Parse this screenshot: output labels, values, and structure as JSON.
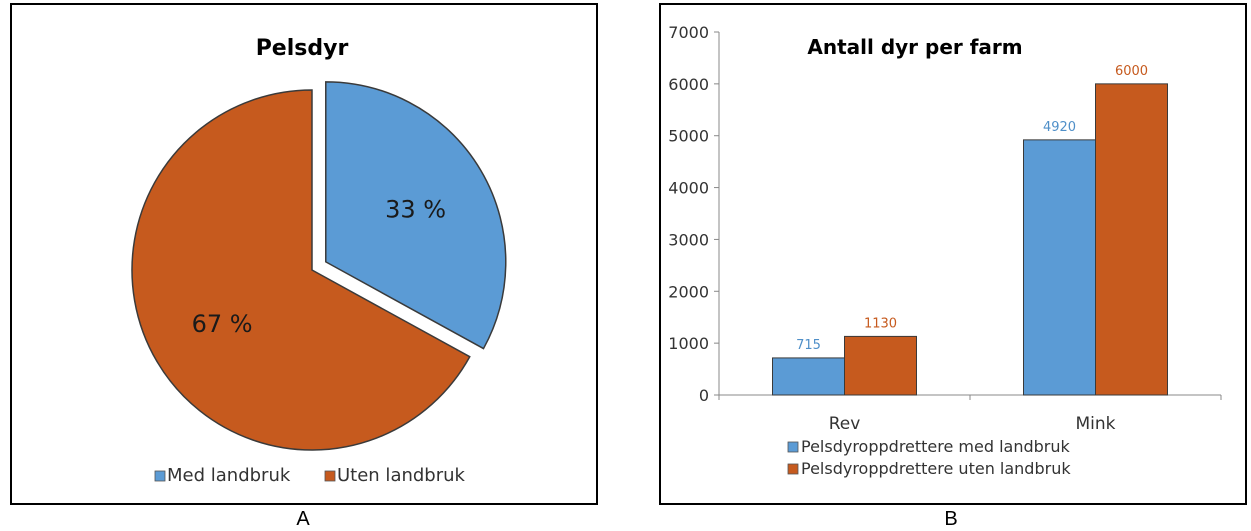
{
  "panels": [
    {
      "letter": "A"
    },
    {
      "letter": "B"
    }
  ],
  "colors": {
    "blue": "#5b9bd5",
    "orange": "#c65a1e",
    "blue_label": "#4f8fc8",
    "orange_label": "#c65a1e"
  },
  "chart_data": [
    {
      "type": "pie",
      "title": "Pelsdyr",
      "slices": [
        {
          "name": "Med landbruk",
          "value": 33,
          "label": "33 %",
          "exploded": true
        },
        {
          "name": "Uten landbruk",
          "value": 67,
          "label": "67 %",
          "exploded": false
        }
      ],
      "legend": "bottom",
      "legend_entries": [
        "Med landbruk",
        "Uten landbruk"
      ]
    },
    {
      "type": "bar",
      "title": "Antall dyr per farm",
      "categories": [
        "Rev",
        "Mink"
      ],
      "series": [
        {
          "name": "Pelsdyroppdrettere med landbruk",
          "values": [
            715,
            4920
          ],
          "labels": [
            "715",
            "4920"
          ]
        },
        {
          "name": "Pelsdyroppdrettere uten landbruk",
          "values": [
            1130,
            6000
          ],
          "labels": [
            "1130",
            "6000"
          ]
        }
      ],
      "ylim": [
        0,
        7000
      ],
      "yticks": [
        "0",
        "1000",
        "2000",
        "3000",
        "4000",
        "5000",
        "6000",
        "7000"
      ],
      "grid": false,
      "legend": "bottom"
    }
  ]
}
